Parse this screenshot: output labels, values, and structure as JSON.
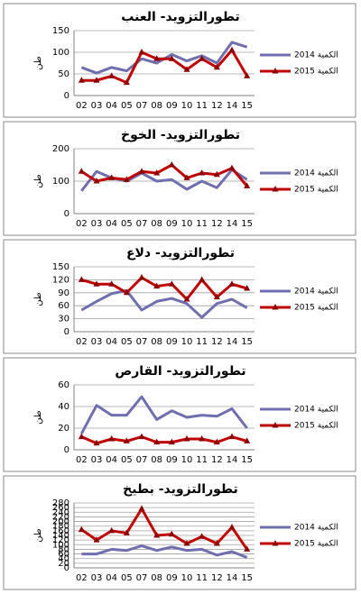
{
  "chart_data": [
    {
      "type": "line",
      "title": "تطورالتزويد- العنب",
      "y_label": "طن",
      "grid": true,
      "legend": "right",
      "categories": [
        "02",
        "03",
        "04",
        "05",
        "07",
        "08",
        "09",
        "10",
        "11",
        "12",
        "14",
        "15"
      ],
      "ylim": [
        0,
        150
      ],
      "yticks": [
        0,
        50,
        100,
        150
      ],
      "series": [
        {
          "name": "الكمية 2014",
          "color": "#6f6fb0",
          "values": [
            65,
            52,
            65,
            57,
            85,
            75,
            95,
            80,
            92,
            75,
            123,
            112
          ]
        },
        {
          "name": "الكمية 2015",
          "color": "#c00000",
          "values": [
            35,
            35,
            45,
            30,
            100,
            85,
            85,
            60,
            85,
            65,
            105,
            45
          ]
        }
      ]
    },
    {
      "type": "line",
      "title": "تطورالتزويد- الخوخ",
      "y_label": "طن",
      "grid": true,
      "legend": "right",
      "categories": [
        "02",
        "03",
        "04",
        "05",
        "07",
        "08",
        "09",
        "10",
        "11",
        "12",
        "14",
        "15"
      ],
      "ylim": [
        0,
        200
      ],
      "yticks": [
        0,
        100,
        200
      ],
      "series": [
        {
          "name": "الكمية 2014",
          "color": "#6f6fb0",
          "values": [
            70,
            130,
            110,
            100,
            125,
            100,
            105,
            75,
            100,
            80,
            135,
            105
          ]
        },
        {
          "name": "الكمية 2015",
          "color": "#c00000",
          "values": [
            130,
            100,
            110,
            105,
            130,
            125,
            150,
            110,
            125,
            120,
            140,
            85
          ]
        }
      ]
    },
    {
      "type": "line",
      "title": "تطورالتزويد- دلاع",
      "y_label": "طن",
      "grid": true,
      "legend": "right",
      "categories": [
        "02",
        "03",
        "04",
        "05",
        "07",
        "08",
        "09",
        "10",
        "11",
        "12",
        "14",
        "15"
      ],
      "ylim": [
        0,
        150
      ],
      "yticks": [
        0,
        30,
        60,
        90,
        120,
        150
      ],
      "series": [
        {
          "name": "الكمية 2014",
          "color": "#6f6fb0",
          "values": [
            50,
            70,
            88,
            95,
            50,
            70,
            77,
            65,
            33,
            65,
            75,
            55
          ]
        },
        {
          "name": "الكمية 2015",
          "color": "#c00000",
          "values": [
            120,
            110,
            110,
            90,
            125,
            105,
            110,
            75,
            120,
            80,
            110,
            100
          ]
        }
      ]
    },
    {
      "type": "line",
      "title": "تطورالتزويد- القارص",
      "y_label": "طن",
      "grid": true,
      "legend": "right",
      "categories": [
        "02",
        "03",
        "04",
        "05",
        "07",
        "08",
        "09",
        "10",
        "11",
        "12",
        "14",
        "15"
      ],
      "ylim": [
        0,
        60
      ],
      "yticks": [
        0,
        20,
        40,
        60
      ],
      "series": [
        {
          "name": "الكمية 2014",
          "color": "#6f6fb0",
          "values": [
            15,
            41,
            32,
            32,
            49,
            28,
            36,
            30,
            32,
            31,
            38,
            20
          ]
        },
        {
          "name": "الكمية 2015",
          "color": "#c00000",
          "values": [
            12,
            6,
            10,
            8,
            12,
            7,
            7,
            10,
            10,
            7,
            12,
            8
          ]
        }
      ]
    },
    {
      "type": "line",
      "title": "تطورالتزويد- بطيخ",
      "y_label": "طن",
      "grid": true,
      "legend": "right",
      "categories": [
        "02",
        "03",
        "04",
        "05",
        "07",
        "08",
        "09",
        "10",
        "11",
        "12",
        "14",
        "15"
      ],
      "ylim": [
        0,
        280
      ],
      "yticks": [
        0,
        20,
        40,
        60,
        80,
        100,
        120,
        140,
        160,
        180,
        200,
        220,
        240,
        260,
        280
      ],
      "series": [
        {
          "name": "الكمية 2014",
          "color": "#6f6fb0",
          "values": [
            60,
            60,
            80,
            75,
            95,
            75,
            90,
            75,
            80,
            55,
            70,
            45
          ]
        },
        {
          "name": "الكمية 2015",
          "color": "#c00000",
          "values": [
            165,
            120,
            160,
            150,
            255,
            140,
            145,
            105,
            135,
            105,
            175,
            80
          ]
        }
      ]
    }
  ]
}
